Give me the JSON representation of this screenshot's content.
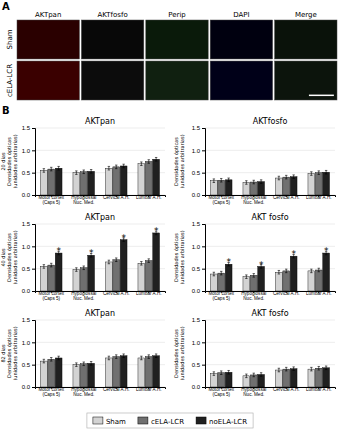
{
  "chart_data": [
    {
      "type": "image_grid",
      "panel_label": "A",
      "x": [
        "AKTpan",
        "AKTfosfo",
        "Perip",
        "DAPI",
        "Merge"
      ],
      "y": [
        "Sham",
        "cELA-LCR"
      ],
      "colors": [
        [
          "#2a0000",
          "#080808",
          "#0a1a0a",
          "#00000f",
          "#0a120a"
        ],
        [
          "#3a0000",
          "#0c0c0c",
          "#102010",
          "#000018",
          "#0c140c"
        ]
      ]
    },
    {
      "type": "bar",
      "panel_label": "B",
      "title": "AKTpan",
      "y_label": "20 dias\nDensidades ópticas\n(unidades arbitrarias)",
      "categories": [
        "Motor cortex\n(Caps 5)",
        "Hypoglossal\nNuc. Med.",
        "Cervical A.H.",
        "Lumbar A.H."
      ],
      "series": [
        {
          "name": "Sham",
          "color": "#d3d3d3",
          "values": [
            0.55,
            0.5,
            0.6,
            0.7
          ],
          "errors": [
            0.04,
            0.04,
            0.04,
            0.04
          ]
        },
        {
          "name": "cELA-LCR",
          "color": "#707070",
          "values": [
            0.58,
            0.52,
            0.63,
            0.75
          ],
          "errors": [
            0.04,
            0.04,
            0.04,
            0.04
          ]
        },
        {
          "name": "noELA-LCR",
          "color": "#202020",
          "values": [
            0.6,
            0.53,
            0.65,
            0.8
          ],
          "errors": [
            0.04,
            0.04,
            0.04,
            0.04
          ]
        }
      ],
      "ylim": [
        0,
        1.5
      ],
      "yticks": [
        {
          "value": 0,
          "label": "0.0"
        },
        {
          "value": 0.5,
          "label": "0.5"
        },
        {
          "value": 1,
          "label": "1.0"
        },
        {
          "value": 1.5,
          "label": "1.5"
        }
      ],
      "grid": true,
      "legend": "bottom"
    },
    {
      "type": "bar",
      "title": "AKTfosfo",
      "y_label": "Densidades ópticas\n(unidades arbitrarias)",
      "categories": [
        "Motor cortex\n(Caps 5)",
        "Hypoglossal\nNuc. Med.",
        "Cervical A.H.",
        "Lumbar A.H."
      ],
      "series": [
        {
          "name": "Sham",
          "color": "#d3d3d3",
          "values": [
            0.32,
            0.28,
            0.38,
            0.48
          ],
          "errors": [
            0.04,
            0.04,
            0.04,
            0.04
          ]
        },
        {
          "name": "cELA-LCR",
          "color": "#707070",
          "values": [
            0.33,
            0.29,
            0.4,
            0.5
          ],
          "errors": [
            0.04,
            0.04,
            0.04,
            0.04
          ]
        },
        {
          "name": "noELA-LCR",
          "color": "#202020",
          "values": [
            0.34,
            0.3,
            0.41,
            0.51
          ],
          "errors": [
            0.04,
            0.04,
            0.04,
            0.04
          ]
        }
      ],
      "ylim": [
        0,
        1.5
      ],
      "yticks": [
        {
          "value": 0,
          "label": "0.0"
        },
        {
          "value": 0.5,
          "label": "0.5"
        },
        {
          "value": 1,
          "label": "1.0"
        },
        {
          "value": 1.5,
          "label": "1.5"
        }
      ],
      "grid": true
    },
    {
      "type": "bar",
      "title": "AKTpan",
      "y_label": "40 dias\nDensidades ópticas\n(unidades arbitrarias)",
      "categories": [
        "Motor cortex\n(Caps 5)",
        "Hypoglossal\nNuc. Med.",
        "Cervical A.H.",
        "Lumbar A.H."
      ],
      "series": [
        {
          "name": "Sham",
          "color": "#d3d3d3",
          "values": [
            0.55,
            0.48,
            0.65,
            0.62
          ],
          "errors": [
            0.04,
            0.04,
            0.04,
            0.04
          ]
        },
        {
          "name": "cELA-LCR",
          "color": "#707070",
          "values": [
            0.58,
            0.52,
            0.7,
            0.68
          ],
          "errors": [
            0.04,
            0.04,
            0.04,
            0.04
          ]
        },
        {
          "name": "noELA-LCR",
          "color": "#202020",
          "values": [
            0.85,
            0.8,
            1.15,
            1.3
          ],
          "errors": [
            0.04,
            0.04,
            0.04,
            0.04
          ]
        }
      ],
      "annotations": [
        "*",
        "*",
        "*",
        "*"
      ],
      "ylim": [
        0,
        1.5
      ],
      "yticks": [
        {
          "value": 0,
          "label": "0.0"
        },
        {
          "value": 0.5,
          "label": "0.5"
        },
        {
          "value": 1,
          "label": "1.0"
        },
        {
          "value": 1.5,
          "label": "1.5"
        }
      ],
      "grid": true
    },
    {
      "type": "bar",
      "title": "AKT fosfo",
      "y_label": "Densidades ópticas\n(unidades arbitrarias)",
      "categories": [
        "Motor cortex\n(Caps 5)",
        "Hypoglossal\nNuc. Med.",
        "Cervical A.H.",
        "Lumbar A.H."
      ],
      "series": [
        {
          "name": "Sham",
          "color": "#d3d3d3",
          "values": [
            0.38,
            0.32,
            0.42,
            0.45
          ],
          "errors": [
            0.04,
            0.04,
            0.04,
            0.04
          ]
        },
        {
          "name": "cELA-LCR",
          "color": "#707070",
          "values": [
            0.4,
            0.35,
            0.45,
            0.47
          ],
          "errors": [
            0.04,
            0.04,
            0.04,
            0.04
          ]
        },
        {
          "name": "noELA-LCR",
          "color": "#202020",
          "values": [
            0.6,
            0.55,
            0.78,
            0.85
          ],
          "errors": [
            0.04,
            0.04,
            0.04,
            0.04
          ]
        }
      ],
      "annotations": [
        "*",
        "*",
        "*",
        "*"
      ],
      "ylim": [
        0,
        1.5
      ],
      "yticks": [
        {
          "value": 0,
          "label": "0.0"
        },
        {
          "value": 0.5,
          "label": "0.5"
        },
        {
          "value": 1,
          "label": "1.0"
        },
        {
          "value": 1.5,
          "label": "1.5"
        }
      ],
      "grid": true
    },
    {
      "type": "bar",
      "title": "AKTpan",
      "y_label": "82 dias\nDensidades ópticas\n(unidades arbitrarias)",
      "categories": [
        "Motor cortex\n(Caps 5)",
        "Hypoglossal\nNuc. Med.",
        "Cervical A.H.",
        "Lumbar A.H."
      ],
      "series": [
        {
          "name": "Sham",
          "color": "#d3d3d3",
          "values": [
            0.58,
            0.5,
            0.65,
            0.65
          ],
          "errors": [
            0.04,
            0.04,
            0.04,
            0.04
          ]
        },
        {
          "name": "cELA-LCR",
          "color": "#707070",
          "values": [
            0.62,
            0.52,
            0.68,
            0.68
          ],
          "errors": [
            0.04,
            0.04,
            0.04,
            0.04
          ]
        },
        {
          "name": "noELA-LCR",
          "color": "#202020",
          "values": [
            0.65,
            0.53,
            0.7,
            0.7
          ],
          "errors": [
            0.04,
            0.04,
            0.04,
            0.04
          ]
        }
      ],
      "ylim": [
        0,
        1.5
      ],
      "yticks": [
        {
          "value": 0,
          "label": "0.0"
        },
        {
          "value": 0.5,
          "label": "0.5"
        },
        {
          "value": 1,
          "label": "1.0"
        },
        {
          "value": 1.5,
          "label": "1.5"
        }
      ],
      "grid": true
    },
    {
      "type": "bar",
      "title": "AKT fosfo",
      "y_label": "Densidades ópticas\n(unidades arbitrarias)",
      "categories": [
        "Motor cortex\n(Caps 5)",
        "Hypoglossal\nNuc. Med.",
        "Cervical A.H.",
        "Lumbar A.H."
      ],
      "series": [
        {
          "name": "Sham",
          "color": "#d3d3d3",
          "values": [
            0.3,
            0.25,
            0.38,
            0.4
          ],
          "errors": [
            0.04,
            0.04,
            0.04,
            0.04
          ]
        },
        {
          "name": "cELA-LCR",
          "color": "#707070",
          "values": [
            0.32,
            0.27,
            0.4,
            0.42
          ],
          "errors": [
            0.04,
            0.04,
            0.04,
            0.04
          ]
        },
        {
          "name": "noELA-LCR",
          "color": "#202020",
          "values": [
            0.33,
            0.28,
            0.41,
            0.43
          ],
          "errors": [
            0.04,
            0.04,
            0.04,
            0.04
          ]
        }
      ],
      "ylim": [
        0,
        1.5
      ],
      "yticks": [
        {
          "value": 0,
          "label": "0.0"
        },
        {
          "value": 0.5,
          "label": "0.5"
        },
        {
          "value": 1,
          "label": "1.0"
        },
        {
          "value": 1.5,
          "label": "1.5"
        }
      ],
      "grid": true
    }
  ]
}
